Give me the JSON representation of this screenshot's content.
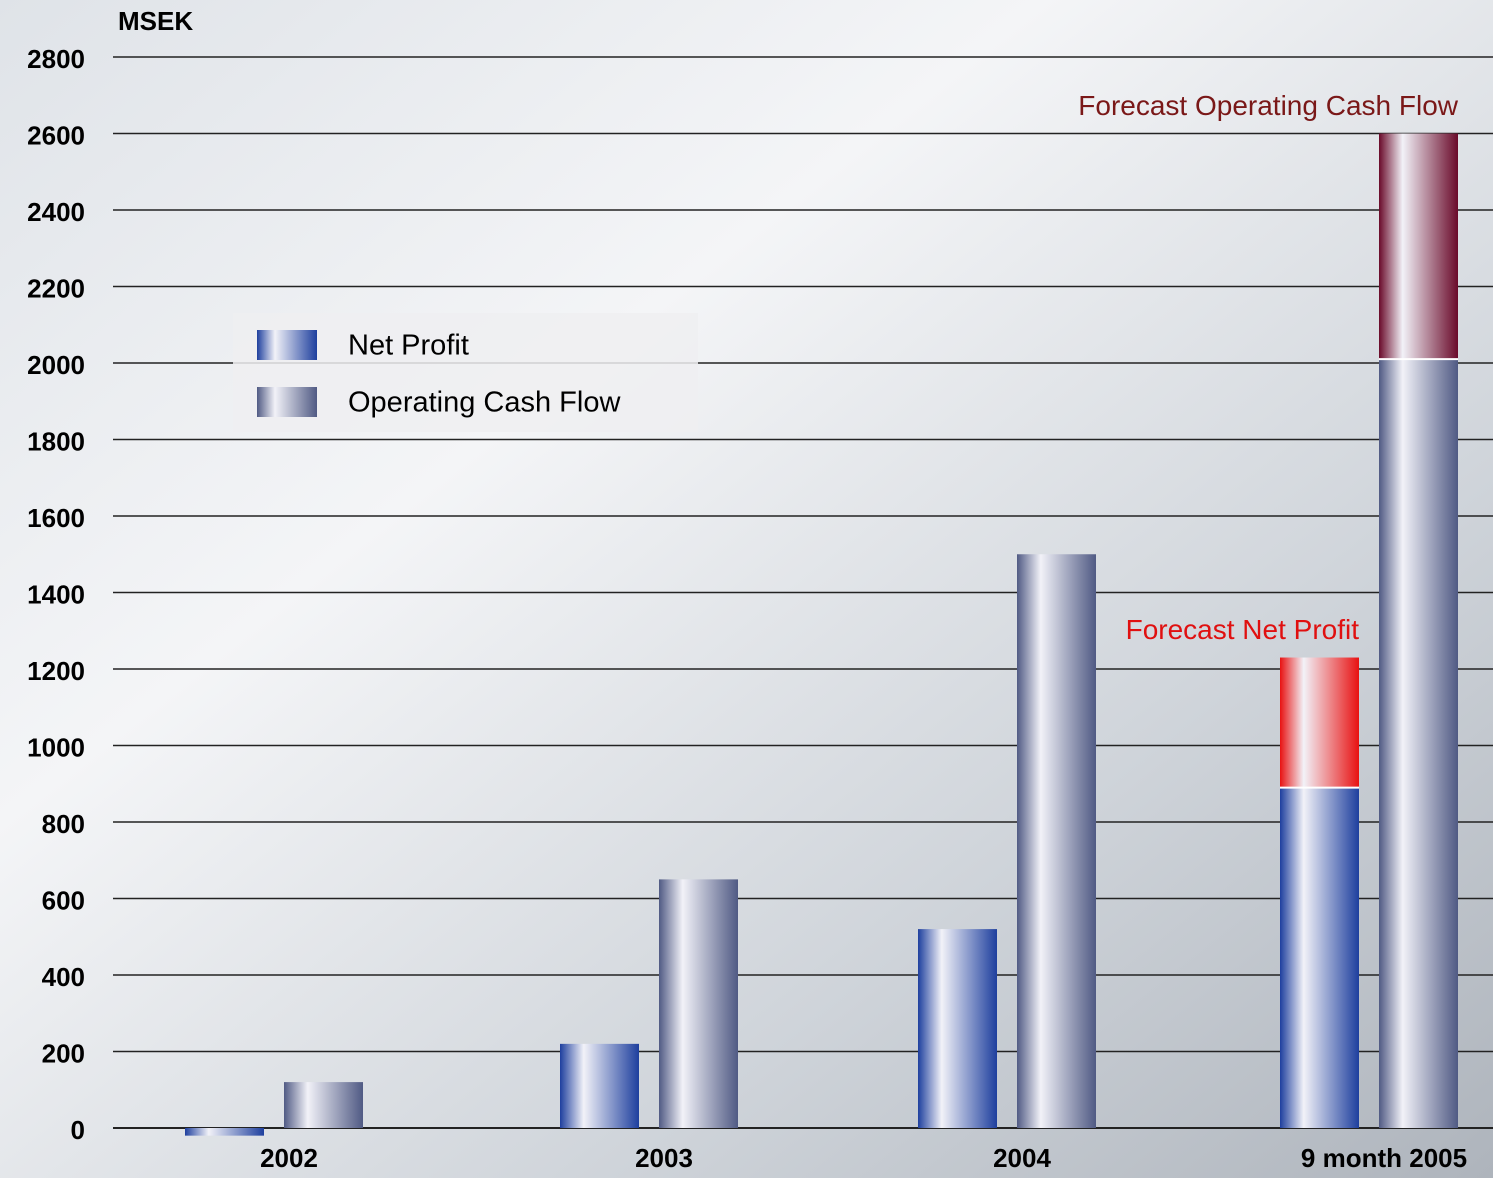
{
  "chart_data": {
    "type": "bar",
    "y_label": "MSEK",
    "categories": [
      "2002",
      "2003",
      "2004",
      "9 month 2005"
    ],
    "series": [
      {
        "name": "Net Profit",
        "color": "#1e3f9e",
        "values": [
          -20,
          220,
          520,
          890
        ],
        "forecast": {
          "name": "Forecast Net Profit",
          "color": "#e81212",
          "label_color": "#e01010",
          "values": [
            null,
            null,
            null,
            340
          ]
        }
      },
      {
        "name": "Operating Cash Flow",
        "color": "#505a84",
        "values": [
          120,
          650,
          1500,
          2010
        ],
        "forecast": {
          "name": "Forecast Operating Cash Flow",
          "color": "#6a0a2a",
          "label_color": "#7a1818",
          "values": [
            null,
            null,
            null,
            590
          ]
        }
      }
    ],
    "ylim": [
      0,
      2800
    ],
    "yticks": [
      0,
      200,
      400,
      600,
      800,
      1000,
      1200,
      1400,
      1600,
      1800,
      2000,
      2200,
      2400,
      2600,
      2800
    ],
    "grid": true,
    "legend": "upper-left"
  }
}
